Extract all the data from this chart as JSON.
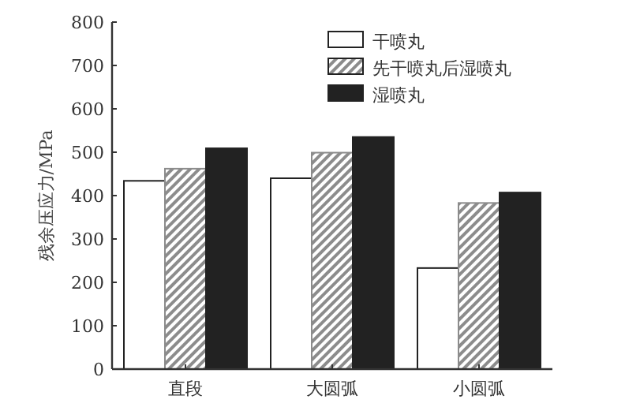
{
  "chart_data": {
    "type": "bar",
    "ylabel": "残余压应力/MPa",
    "categories": [
      "直段",
      "大圆弧",
      "小圆弧"
    ],
    "series": [
      {
        "name": "干喷丸",
        "color": "#ffffff",
        "values": [
          434,
          440,
          233
        ]
      },
      {
        "name": "先干喷丸后湿喷丸",
        "color": "#8c8c8c",
        "values": [
          462,
          499,
          383
        ]
      },
      {
        "name": "湿喷丸",
        "color": "#222222",
        "values": [
          509,
          535,
          407
        ]
      }
    ],
    "ylim": [
      0,
      800
    ],
    "yticks": [
      0,
      100,
      200,
      300,
      400,
      500,
      600,
      700,
      800
    ],
    "legend": "top right",
    "grid": false
  }
}
